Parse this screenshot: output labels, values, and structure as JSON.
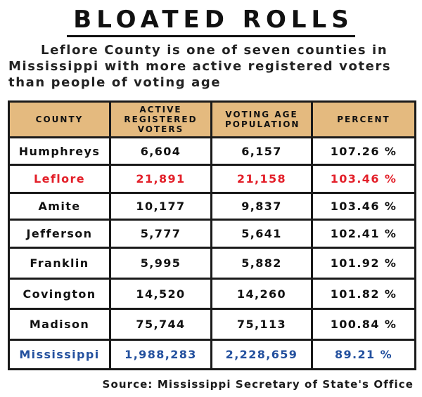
{
  "title": "BLOATED ROLLS",
  "subtitle": [
    "Leflore County is one of seven counties in",
    "Mississippi with more active registered voters",
    "than people of voting age"
  ],
  "source": "Source: Mississippi Secretary of State's Office",
  "colors": {
    "header_bg": "#e4ba7f",
    "highlight_red": "#e3202a",
    "state_blue": "#23509e"
  },
  "chart_data": {
    "type": "table",
    "title": "BLOATED ROLLS",
    "columns": [
      "COUNTY",
      "ACTIVE REGISTERED VOTERS",
      "VOTING AGE POPULATION",
      "PERCENT"
    ],
    "rows": [
      [
        "Humphreys",
        "6,604",
        "6,157",
        "107.26 %"
      ],
      [
        "Leflore",
        "21,891",
        "21,158",
        "103.46 %"
      ],
      [
        "Amite",
        "10,177",
        "9,837",
        "103.46 %"
      ],
      [
        "Jefferson",
        "5,777",
        "5,641",
        "102.41 %"
      ],
      [
        "Franklin",
        "5,995",
        "5,882",
        "101.92 %"
      ],
      [
        "Covington",
        "14,520",
        "14,260",
        "101.82 %"
      ],
      [
        "Madison",
        "75,744",
        "75,113",
        "100.84 %"
      ],
      [
        "Mississippi",
        "1,988,283",
        "2,228,659",
        "89.21 %"
      ]
    ]
  }
}
